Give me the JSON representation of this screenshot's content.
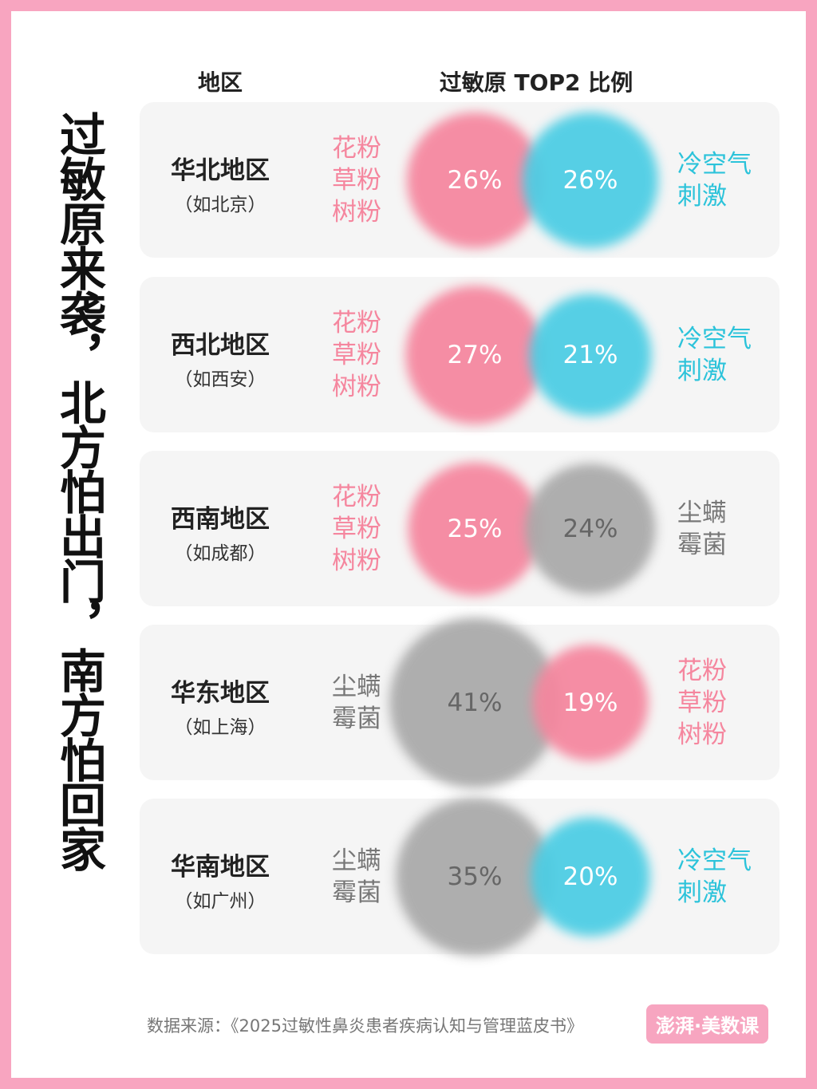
{
  "title": "过敏原来袭，北方怕出门，南方怕回家",
  "headers": {
    "region": "地区",
    "ratio": "过敏原 TOP2 比例"
  },
  "rows": [
    {
      "region": "华北地区",
      "example": "（如北京）",
      "left": {
        "labels": [
          "花粉",
          "草粉",
          "树粉"
        ],
        "value": 26,
        "value_label": "26%",
        "color": "#f5869e"
      },
      "right": {
        "labels": [
          "冷空气",
          "刺激"
        ],
        "value": 26,
        "value_label": "26%",
        "color": "#4ccde4"
      }
    },
    {
      "region": "西北地区",
      "example": "（如西安）",
      "left": {
        "labels": [
          "花粉",
          "草粉",
          "树粉"
        ],
        "value": 27,
        "value_label": "27%",
        "color": "#f5869e"
      },
      "right": {
        "labels": [
          "冷空气",
          "刺激"
        ],
        "value": 21,
        "value_label": "21%",
        "color": "#4ccde4"
      }
    },
    {
      "region": "西南地区",
      "example": "（如成都）",
      "left": {
        "labels": [
          "花粉",
          "草粉",
          "树粉"
        ],
        "value": 25,
        "value_label": "25%",
        "color": "#f5869e"
      },
      "right": {
        "labels": [
          "尘螨",
          "霉菌"
        ],
        "value": 24,
        "value_label": "24%",
        "color": "#a9a9a9"
      }
    },
    {
      "region": "华东地区",
      "example": "（如上海）",
      "left": {
        "labels": [
          "尘螨",
          "霉菌"
        ],
        "value": 41,
        "value_label": "41%",
        "color": "#a9a9a9"
      },
      "right": {
        "labels": [
          "花粉",
          "草粉",
          "树粉"
        ],
        "value": 19,
        "value_label": "19%",
        "color": "#f5869e"
      }
    },
    {
      "region": "华南地区",
      "example": "（如广州）",
      "left": {
        "labels": [
          "尘螨",
          "霉菌"
        ],
        "value": 35,
        "value_label": "35%",
        "color": "#a9a9a9"
      },
      "right": {
        "labels": [
          "冷空气",
          "刺激"
        ],
        "value": 20,
        "value_label": "20%",
        "color": "#4ccde4"
      }
    }
  ],
  "source": "数据来源：《2025过敏性鼻炎患者疾病认知与管理蓝皮书》",
  "logo": "澎湃·美数课"
}
